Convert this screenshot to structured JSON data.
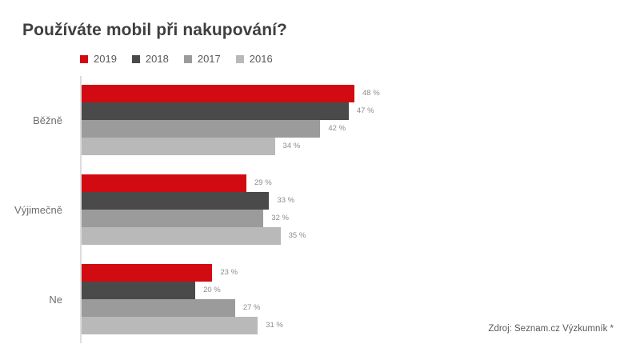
{
  "title": "Používáte mobil při nakupování?",
  "source": "Zdroj: Seznam.cz Výzkumník *",
  "colors": {
    "accent_red": "#d20a11",
    "dark_gray": "#4a4a4a",
    "mid_gray": "#9b9b9b",
    "light_gray": "#b9b9b9",
    "axis_line": "#dddddd",
    "title_text": "#3f3f3f",
    "value_text": "#8c8c8c"
  },
  "chart_data": {
    "type": "bar",
    "orientation": "horizontal",
    "title": "Používáte mobil při nakupování?",
    "categories": [
      "Běžně",
      "Výjimečně",
      "Ne"
    ],
    "series": [
      {
        "name": "2019",
        "color": "#d20a11",
        "values": [
          48,
          29,
          23
        ]
      },
      {
        "name": "2018",
        "color": "#4a4a4a",
        "values": [
          47,
          33,
          20
        ]
      },
      {
        "name": "2017",
        "color": "#9b9b9b",
        "values": [
          42,
          32,
          27
        ]
      },
      {
        "name": "2016",
        "color": "#b9b9b9",
        "values": [
          34,
          35,
          31
        ]
      }
    ],
    "value_suffix": " %",
    "xlim": [
      0,
      48
    ],
    "xlabel": "",
    "ylabel": "",
    "grid": false,
    "legend_position": "top-left",
    "data_labels": true
  }
}
